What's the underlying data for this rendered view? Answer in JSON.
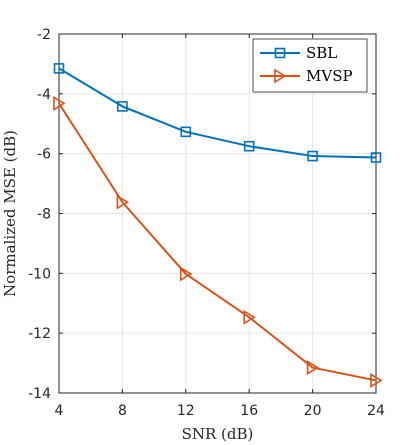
{
  "chart_data": {
    "type": "line",
    "title": "",
    "xlabel": "SNR (dB)",
    "ylabel": "Normalized MSE (dB)",
    "x": [
      4,
      8,
      12,
      16,
      20,
      24
    ],
    "xlim": [
      4,
      24
    ],
    "ylim": [
      -14,
      -2
    ],
    "xticks": [
      "4",
      "8",
      "12",
      "16",
      "20",
      "24"
    ],
    "yticks": [
      "-2",
      "-4",
      "-6",
      "-8",
      "-10",
      "-12",
      "-14"
    ],
    "grid": true,
    "legend_position": "top-right",
    "series": [
      {
        "name": "SBL",
        "color": "#0072BD",
        "marker": "square",
        "values": [
          -3.15,
          -4.42,
          -5.27,
          -5.75,
          -6.08,
          -6.13
        ]
      },
      {
        "name": "MVSP",
        "color": "#D95319",
        "marker": "triangle-right",
        "values": [
          -4.32,
          -7.62,
          -10.02,
          -11.47,
          -13.15,
          -13.58
        ]
      }
    ]
  }
}
